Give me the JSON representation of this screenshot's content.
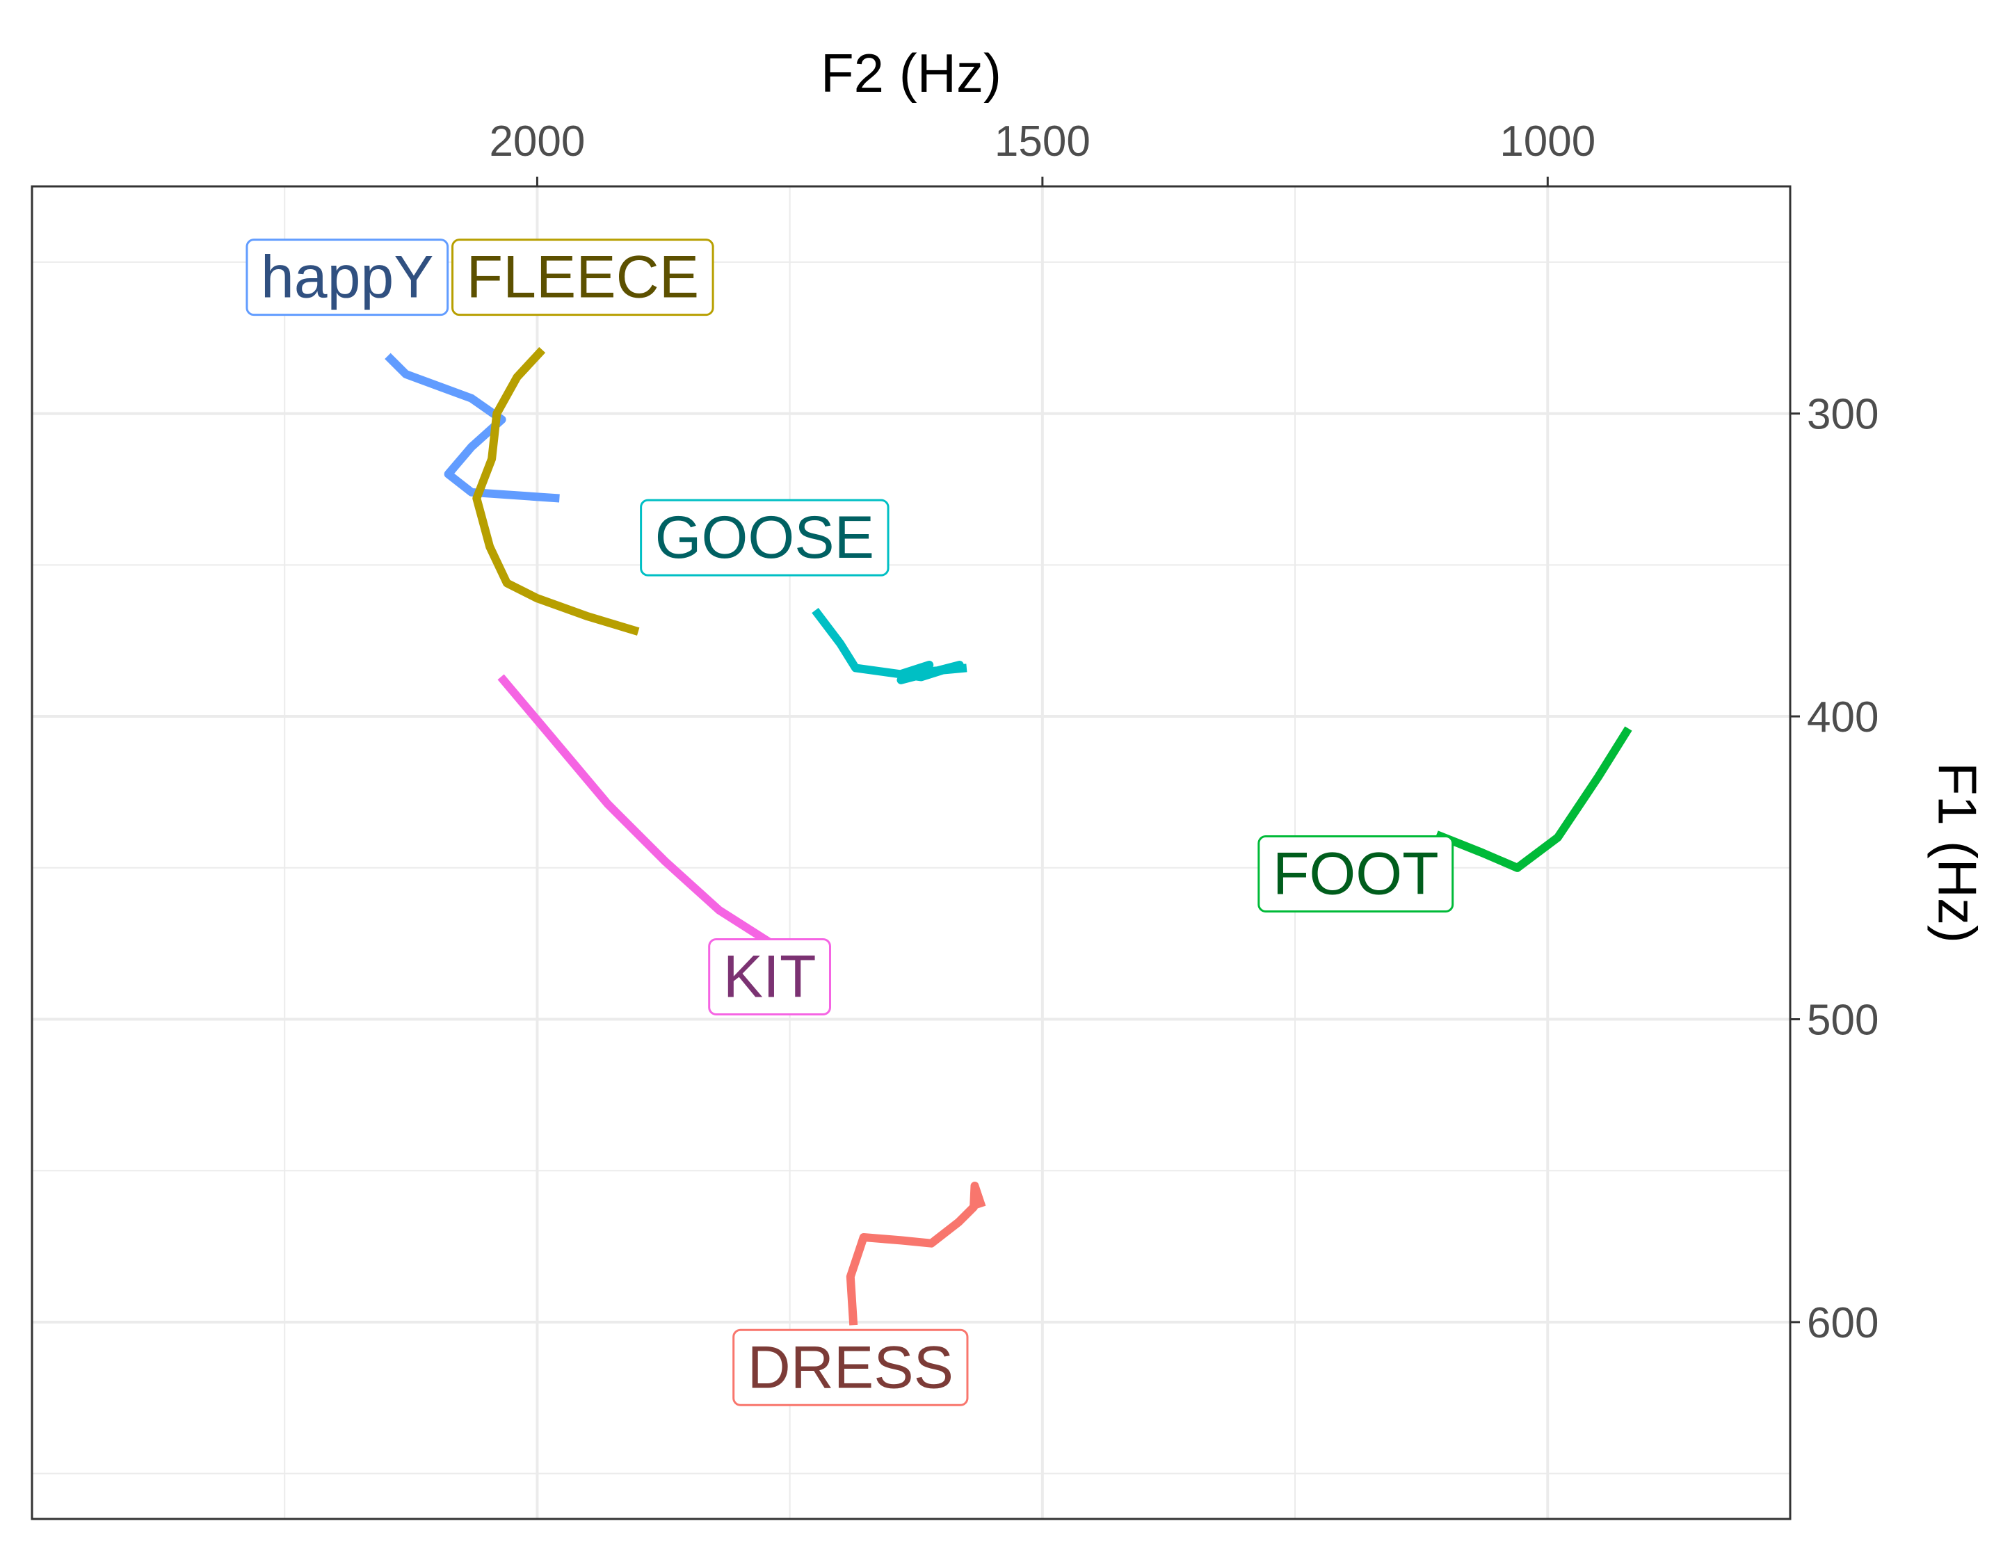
{
  "chart_data": {
    "type": "line",
    "title": "",
    "xlabel": "F2 (Hz)",
    "ylabel": "F1 (Hz)",
    "x_reversed": true,
    "y_reversed": true,
    "x_axis_position": "top",
    "y_axis_position": "right",
    "xlim": [
      2500,
      760
    ],
    "ylim": [
      225,
      665
    ],
    "x_ticks": [
      2000,
      1500,
      1000
    ],
    "y_ticks": [
      300,
      400,
      500,
      600
    ],
    "grid": true,
    "legend": "none",
    "series": [
      {
        "name": "happY",
        "color": "#619CFF",
        "label_color": "#305080",
        "label_at": [
          2188,
          255
        ],
        "points": [
          [
            2148,
            281
          ],
          [
            2130,
            287
          ],
          [
            2065,
            295
          ],
          [
            2035,
            302
          ],
          [
            2065,
            311
          ],
          [
            2088,
            320
          ],
          [
            2065,
            326
          ],
          [
            1978,
            328
          ]
        ]
      },
      {
        "name": "FLEECE",
        "color": "#B79F00",
        "label_color": "#5C5000",
        "label_at": [
          1955,
          255
        ],
        "points": [
          [
            1995,
            279
          ],
          [
            2020,
            288
          ],
          [
            2040,
            300
          ],
          [
            2045,
            315
          ],
          [
            2060,
            328
          ],
          [
            2047,
            344
          ],
          [
            2030,
            356
          ],
          [
            2000,
            361
          ],
          [
            1950,
            367
          ],
          [
            1900,
            372
          ]
        ]
      },
      {
        "name": "GOOSE",
        "color": "#00BFC4",
        "label_color": "#006062",
        "label_at": [
          1775,
          341
        ],
        "points": [
          [
            1725,
            365
          ],
          [
            1700,
            376
          ],
          [
            1685,
            384
          ],
          [
            1620,
            387
          ],
          [
            1582,
            383
          ],
          [
            1640,
            388
          ],
          [
            1612,
            383
          ],
          [
            1640,
            386
          ],
          [
            1575,
            384
          ]
        ]
      },
      {
        "name": "KIT",
        "color": "#F564E3",
        "label_color": "#7B3272",
        "label_at": [
          1770,
          486
        ],
        "points": [
          [
            2036,
            387
          ],
          [
            1993,
            404
          ],
          [
            1930,
            429
          ],
          [
            1873,
            448
          ],
          [
            1820,
            464
          ],
          [
            1754,
            478
          ],
          [
            1720,
            484
          ]
        ]
      },
      {
        "name": "FOOT",
        "color": "#00BA38",
        "label_color": "#005D1C",
        "label_at": [
          1190,
          452
        ],
        "points": [
          [
            920,
            404
          ],
          [
            950,
            420
          ],
          [
            990,
            440
          ],
          [
            1030,
            450
          ],
          [
            1065,
            445
          ],
          [
            1110,
            439
          ]
        ]
      },
      {
        "name": "DRESS",
        "color": "#F8766D",
        "label_color": "#7C3B37",
        "label_at": [
          1690,
          615
        ],
        "points": [
          [
            1687,
            601
          ],
          [
            1690,
            585
          ],
          [
            1677,
            572
          ],
          [
            1640,
            573
          ],
          [
            1610,
            574
          ],
          [
            1583,
            567
          ],
          [
            1568,
            562
          ],
          [
            1567,
            555
          ],
          [
            1560,
            562
          ]
        ]
      }
    ]
  }
}
